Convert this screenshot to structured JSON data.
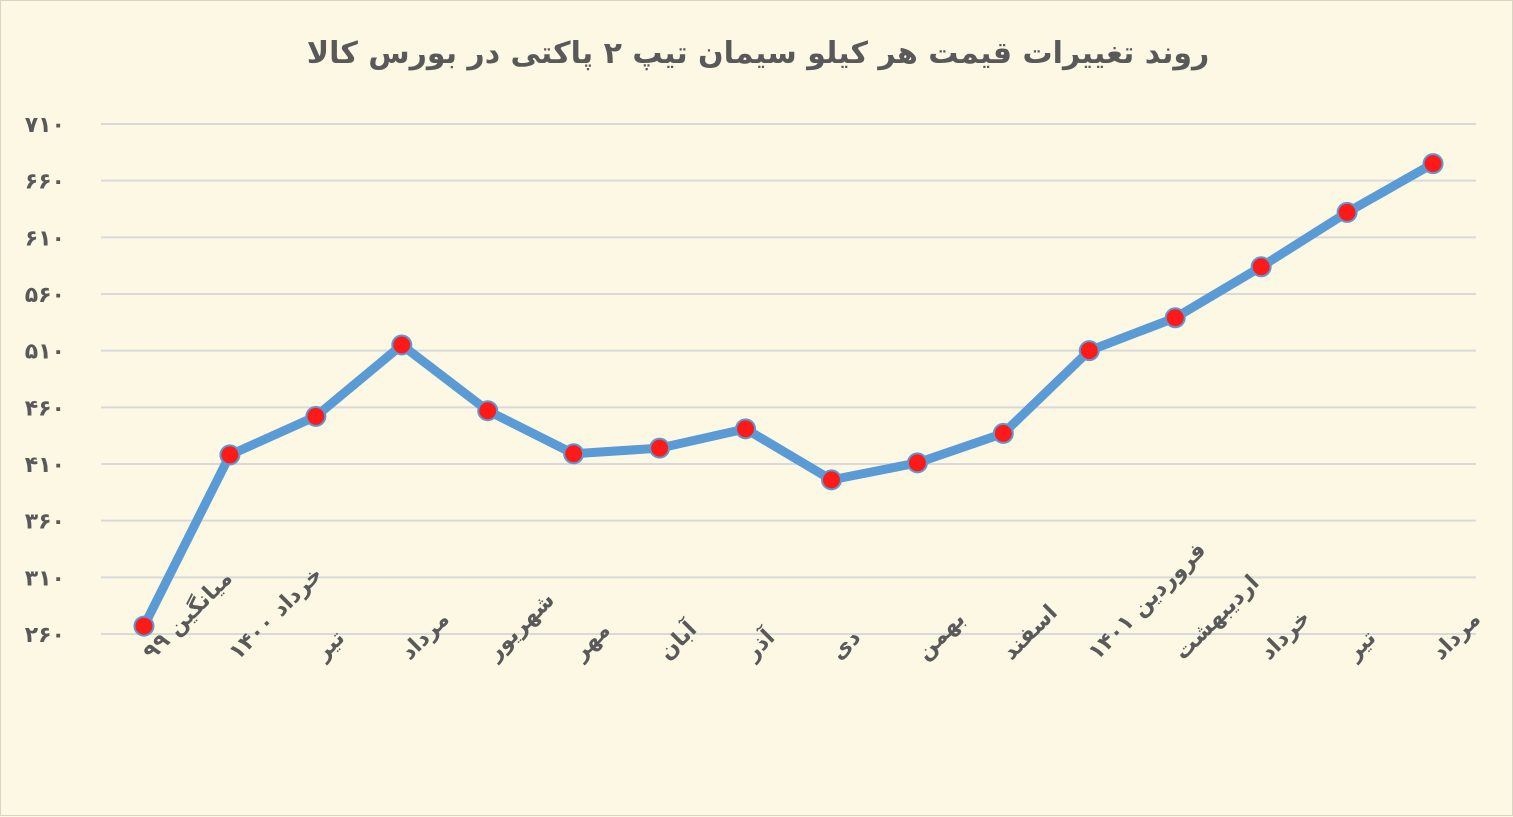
{
  "chart_data": {
    "type": "line",
    "title": "روند تغییرات قیمت هر کیلو سیمان تیپ ۲ پاکتی در بورس کالا",
    "xlabel": "",
    "ylabel": "",
    "ylim": [
      260,
      710
    ],
    "yticks": [
      260,
      310,
      360,
      410,
      460,
      510,
      560,
      610,
      660,
      710
    ],
    "ytick_labels": [
      "۲۶۰",
      "۳۱۰",
      "۳۶۰",
      "۴۱۰",
      "۴۶۰",
      "۵۱۰",
      "۵۶۰",
      "۶۱۰",
      "۶۶۰",
      "۷۱۰"
    ],
    "grid": true,
    "legend": "none",
    "categories": [
      "میانگین ۹۹",
      "خرداد ۱۴۰۰",
      "تیر",
      "مرداد",
      "شهریور",
      "مهر",
      "آبان",
      "آذر",
      "دی",
      "بهمن",
      "اسفند",
      "فروردین ۱۴۰۱",
      "اردیبهشت",
      "خرداد",
      "تیر",
      "مرداد"
    ],
    "series": [
      {
        "values": [
          267,
          418,
          452,
          515,
          457,
          419,
          424,
          441,
          396,
          411,
          437,
          510,
          539,
          584,
          632,
          675
        ],
        "line_color": "#5b9bd5",
        "marker_color": "#ff1a1a"
      }
    ]
  }
}
